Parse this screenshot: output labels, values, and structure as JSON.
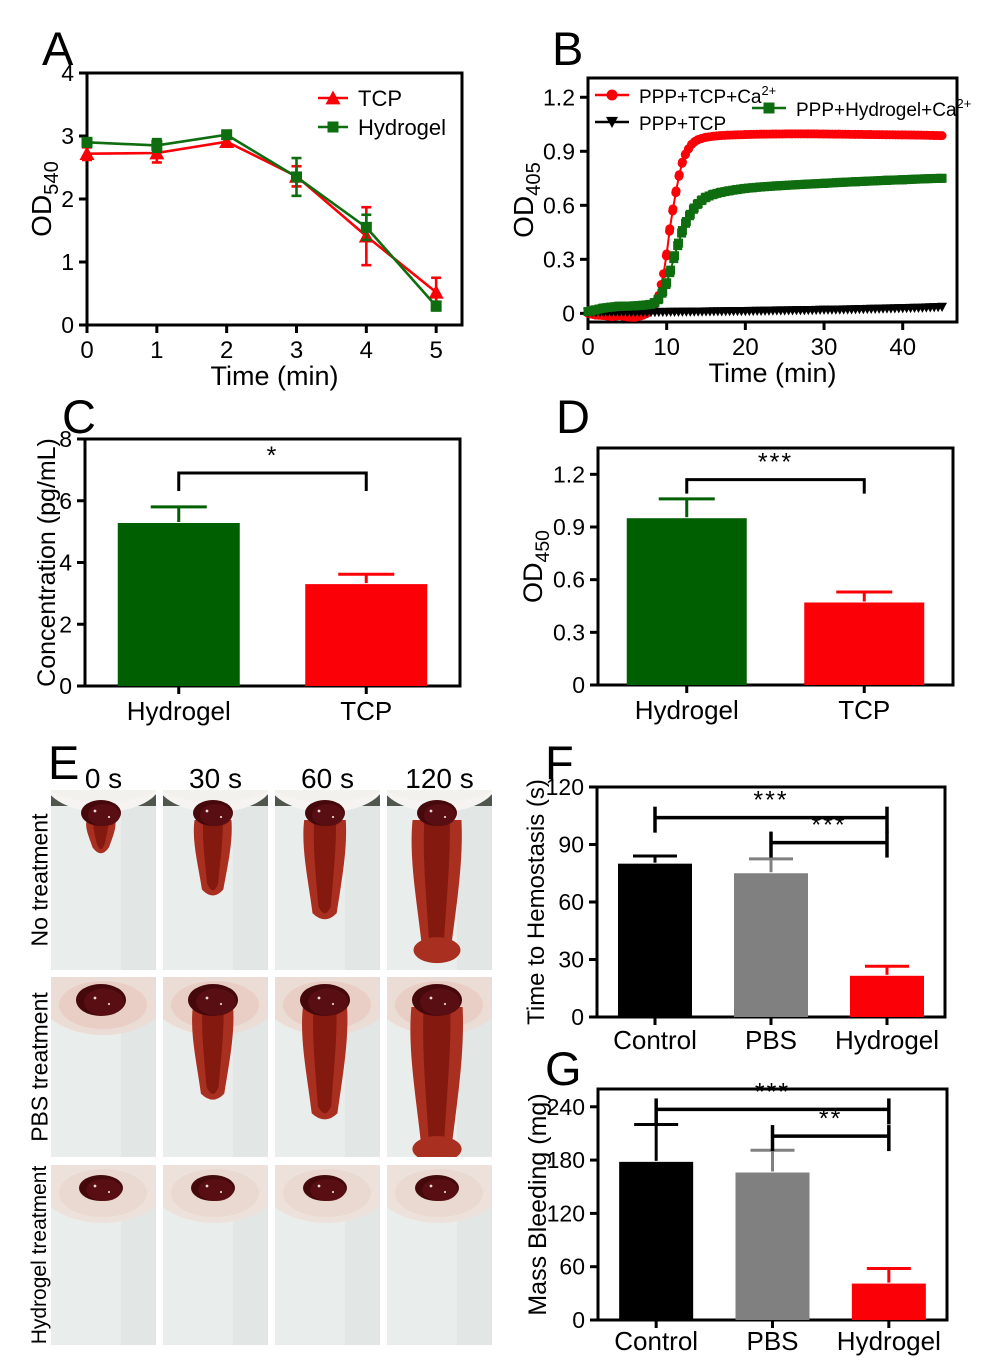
{
  "chart_data": [
    {
      "panel": "A",
      "type": "line",
      "xlabel": "Time (min)",
      "ylabel": {
        "base": "OD",
        "sub": "540"
      },
      "xlim": [
        0,
        5.37
      ],
      "ylim": [
        0,
        4
      ],
      "xticks": [
        0,
        1,
        2,
        3,
        4,
        5
      ],
      "yticks": [
        0,
        1,
        2,
        3,
        4
      ],
      "grid": false,
      "legend_position": "top-right-inside",
      "series": [
        {
          "name": "TCP",
          "sup": "",
          "color": "#fb0007",
          "marker": "triangle-up",
          "x": [
            0,
            1,
            2,
            3,
            4,
            5
          ],
          "y": [
            2.72,
            2.73,
            2.91,
            2.36,
            1.41,
            0.52
          ],
          "err": [
            0.1,
            0.15,
            0.07,
            0.16,
            0.46,
            0.23
          ]
        },
        {
          "name": "Hydrogel",
          "sup": "",
          "color": "#0e6d0e",
          "marker": "square",
          "x": [
            0,
            1,
            2,
            3,
            4,
            5
          ],
          "y": [
            2.9,
            2.85,
            3.02,
            2.35,
            1.55,
            0.3
          ],
          "err": [
            0.06,
            0.1,
            0.05,
            0.3,
            0.2,
            0.07
          ]
        }
      ]
    },
    {
      "panel": "B",
      "type": "scatter",
      "xlabel": "Time (min)",
      "ylabel": {
        "base": "OD",
        "sub": "405"
      },
      "xlim": [
        0,
        46.9
      ],
      "ylim": [
        -0.048,
        1.307
      ],
      "xticks": [
        0,
        10,
        20,
        30,
        40
      ],
      "yticks": [
        0,
        0.3,
        0.6,
        0.9,
        1.2
      ],
      "grid": false,
      "legend_position": "top-inside",
      "series": [
        {
          "name": "PPP+TCP+Ca",
          "sup": "2+",
          "color": "#fb0007",
          "marker": "circle",
          "pts": [
            [
              0,
              0.0
            ],
            [
              1,
              -0.01
            ],
            [
              2,
              -0.012
            ],
            [
              3,
              -0.018
            ],
            [
              4,
              -0.012
            ],
            [
              5,
              -0.02
            ],
            [
              6,
              -0.022
            ],
            [
              7,
              -0.01
            ],
            [
              7.5,
              0.0
            ],
            [
              8,
              0.02
            ],
            [
              8.5,
              0.05
            ],
            [
              9,
              0.1
            ],
            [
              9.3,
              0.16
            ],
            [
              9.6,
              0.22
            ],
            [
              10,
              0.33
            ],
            [
              10.4,
              0.47
            ],
            [
              10.8,
              0.58
            ],
            [
              11.2,
              0.68
            ],
            [
              11.6,
              0.77
            ],
            [
              12,
              0.84
            ],
            [
              12.4,
              0.885
            ],
            [
              12.8,
              0.915
            ],
            [
              13.2,
              0.94
            ],
            [
              13.6,
              0.955
            ],
            [
              14,
              0.965
            ],
            [
              14.5,
              0.972
            ],
            [
              15,
              0.978
            ],
            [
              16,
              0.984
            ],
            [
              17,
              0.988
            ],
            [
              18,
              0.99
            ],
            [
              20,
              0.993
            ],
            [
              22,
              0.995
            ],
            [
              24,
              0.996
            ],
            [
              26,
              0.997
            ],
            [
              28,
              0.997
            ],
            [
              30,
              0.996
            ],
            [
              32,
              0.995
            ],
            [
              34,
              0.994
            ],
            [
              36,
              0.993
            ],
            [
              38,
              0.992
            ],
            [
              40,
              0.991
            ],
            [
              42,
              0.99
            ],
            [
              44,
              0.988
            ],
            [
              45,
              0.987
            ]
          ]
        },
        {
          "name": "PPP+TCP",
          "sup": "",
          "color": "#000000",
          "marker": "triangle-down",
          "pts": [
            [
              0,
              0.004
            ],
            [
              2,
              0.004
            ],
            [
              4,
              0.005
            ],
            [
              6,
              0.005
            ],
            [
              8,
              0.006
            ],
            [
              10,
              0.007
            ],
            [
              12,
              0.008
            ],
            [
              14,
              0.009
            ],
            [
              16,
              0.01
            ],
            [
              18,
              0.011
            ],
            [
              20,
              0.012
            ],
            [
              22,
              0.013
            ],
            [
              24,
              0.015
            ],
            [
              26,
              0.016
            ],
            [
              28,
              0.017
            ],
            [
              30,
              0.019
            ],
            [
              32,
              0.02
            ],
            [
              34,
              0.022
            ],
            [
              36,
              0.024
            ],
            [
              38,
              0.026
            ],
            [
              40,
              0.028
            ],
            [
              42,
              0.03
            ],
            [
              44,
              0.033
            ],
            [
              45,
              0.035
            ]
          ]
        },
        {
          "name": "PPP+Hydrogel+Ca",
          "sup": "2+",
          "color": "#0e6d0e",
          "marker": "square",
          "pts": [
            [
              0,
              0.01
            ],
            [
              1,
              0.02
            ],
            [
              2,
              0.03
            ],
            [
              3,
              0.035
            ],
            [
              4,
              0.04
            ],
            [
              5,
              0.04
            ],
            [
              6,
              0.042
            ],
            [
              7,
              0.045
            ],
            [
              8,
              0.05
            ],
            [
              8.5,
              0.06
            ],
            [
              9,
              0.08
            ],
            [
              9.5,
              0.12
            ],
            [
              10,
              0.17
            ],
            [
              10.5,
              0.24
            ],
            [
              11,
              0.32
            ],
            [
              11.5,
              0.39
            ],
            [
              12,
              0.46
            ],
            [
              12.5,
              0.51
            ],
            [
              13,
              0.55
            ],
            [
              13.5,
              0.585
            ],
            [
              14,
              0.61
            ],
            [
              14.5,
              0.63
            ],
            [
              15,
              0.645
            ],
            [
              16,
              0.662
            ],
            [
              17,
              0.673
            ],
            [
              18,
              0.681
            ],
            [
              19,
              0.688
            ],
            [
              20,
              0.694
            ],
            [
              21,
              0.698
            ],
            [
              22,
              0.702
            ],
            [
              24,
              0.708
            ],
            [
              26,
              0.713
            ],
            [
              28,
              0.718
            ],
            [
              30,
              0.722
            ],
            [
              32,
              0.727
            ],
            [
              34,
              0.731
            ],
            [
              36,
              0.735
            ],
            [
              38,
              0.739
            ],
            [
              40,
              0.742
            ],
            [
              42,
              0.746
            ],
            [
              44,
              0.749
            ],
            [
              45,
              0.75
            ]
          ]
        }
      ]
    },
    {
      "panel": "C",
      "type": "bar",
      "ylabel": {
        "base": "Concentration (pg/mL)",
        "sub": ""
      },
      "ylim": [
        0,
        8
      ],
      "yticks": [
        0,
        2,
        4,
        6,
        8
      ],
      "categories": [
        "Hydrogel",
        "TCP"
      ],
      "values": [
        5.28,
        3.3
      ],
      "errors": [
        0.52,
        0.32
      ],
      "colors": [
        "#005f00",
        "#fb0007"
      ],
      "significance": [
        {
          "from": 0,
          "to": 1,
          "label": "*",
          "y": 6.9
        }
      ]
    },
    {
      "panel": "D",
      "type": "bar",
      "ylabel": {
        "base": "OD",
        "sub": "450"
      },
      "ylim": [
        0,
        1.35
      ],
      "yticks": [
        0,
        0.3,
        0.6,
        0.9,
        1.2
      ],
      "categories": [
        "Hydrogel",
        "TCP"
      ],
      "values": [
        0.95,
        0.47
      ],
      "errors": [
        0.11,
        0.06
      ],
      "colors": [
        "#005f00",
        "#fb0007"
      ],
      "significance": [
        {
          "from": 0,
          "to": 1,
          "label": "***",
          "y": 1.17
        }
      ]
    },
    {
      "panel": "F",
      "type": "bar",
      "ylabel": {
        "base": "Time to Hemostasis (s)",
        "sub": ""
      },
      "ylim": [
        0,
        120
      ],
      "yticks": [
        0,
        30,
        60,
        90,
        120
      ],
      "categories": [
        "Control",
        "PBS",
        "Hydrogel"
      ],
      "values": [
        80,
        75,
        21.5
      ],
      "errors": [
        4,
        7.5,
        5
      ],
      "colors": [
        "#000000",
        "#808080",
        "#fb0007"
      ],
      "significance": [
        {
          "from": 0,
          "to": 2,
          "label": "***",
          "y": 104
        },
        {
          "from": 1,
          "to": 2,
          "label": "***",
          "y": 91
        }
      ]
    },
    {
      "panel": "G",
      "type": "bar",
      "ylabel": {
        "base": "Mass Bleeding (mg)",
        "sub": ""
      },
      "ylim": [
        0,
        260
      ],
      "yticks": [
        0,
        60,
        120,
        180,
        240
      ],
      "categories": [
        "Control",
        "PBS",
        "Hydrogel"
      ],
      "values": [
        178,
        166,
        41
      ],
      "errors": [
        42,
        25,
        17
      ],
      "colors": [
        "#000000",
        "#808080",
        "#fb0007"
      ],
      "significance": [
        {
          "from": 0,
          "to": 2,
          "label": "***",
          "y": 237
        },
        {
          "from": 1,
          "to": 2,
          "label": "**",
          "y": 207
        }
      ]
    }
  ],
  "panel_e": {
    "letter": "E",
    "timepoints": [
      "0 s",
      "30 s",
      "60 s",
      "120 s"
    ],
    "rows": [
      {
        "label": "No treatment",
        "skin": false,
        "blob": 20,
        "trail": [
          0.1,
          0.42,
          0.6,
          0.88
        ]
      },
      {
        "label": "PBS treatment",
        "skin": true,
        "blob": 25,
        "trail": [
          0.0,
          0.55,
          0.7,
          0.97
        ]
      },
      {
        "label": "Hydrogel treatment",
        "skin": true,
        "blob": 22,
        "trail": [
          0,
          0,
          0,
          0
        ]
      }
    ]
  },
  "colors": {
    "red": "#fb0007",
    "dark_green_bar": "#005f00",
    "dark_green_line": "#0e6d0e",
    "gray_bar": "#808080",
    "black": "#000000",
    "blood_dark": "#45090c",
    "blood_trail": "#a93020"
  }
}
